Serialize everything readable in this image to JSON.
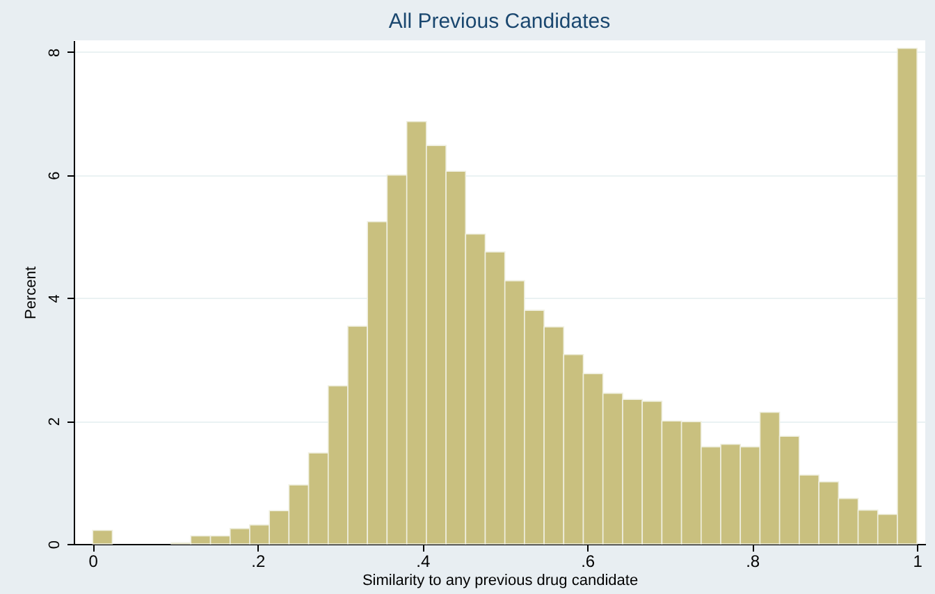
{
  "chart_data": {
    "type": "histogram",
    "title": "All Previous Candidates",
    "xlabel": "Similarity to any previous drug candidate",
    "ylabel": "Percent",
    "bins": [
      0,
      0.0238,
      0.0476,
      0.0714,
      0.0952,
      0.119,
      0.1429,
      0.1667,
      0.1905,
      0.2143,
      0.2381,
      0.2619,
      0.2857,
      0.3095,
      0.3333,
      0.3571,
      0.381,
      0.4048,
      0.4286,
      0.4524,
      0.4762,
      0.5,
      0.5238,
      0.5476,
      0.5714,
      0.5952,
      0.619,
      0.6429,
      0.6667,
      0.6905,
      0.7143,
      0.7381,
      0.7619,
      0.7857,
      0.8095,
      0.8333,
      0.8571,
      0.881,
      0.9048,
      0.9286,
      0.9524,
      0.9762,
      1
    ],
    "values": [
      0.22,
      0,
      0,
      0,
      0.02,
      0.13,
      0.13,
      0.25,
      0.31,
      0.54,
      0.96,
      1.48,
      2.57,
      3.54,
      5.24,
      6.0,
      6.87,
      6.48,
      6.06,
      5.04,
      4.75,
      4.28,
      3.8,
      3.53,
      3.08,
      2.77,
      2.45,
      2.35,
      2.32,
      2.0,
      1.99,
      1.58,
      1.62,
      1.58,
      2.14,
      1.75,
      1.12,
      1.01,
      0.74,
      0.55,
      0.48,
      8.06
    ],
    "color": "#c9c07f",
    "xlim": [
      -0.023,
      1.01
    ],
    "xticks": [
      0,
      {
        "value": 0.2,
        "label": ".2"
      },
      {
        "value": 0.4,
        "label": ".4"
      },
      {
        "value": 0.6,
        "label": ".6"
      },
      {
        "value": 0.8,
        "label": ".8"
      },
      1
    ],
    "ylim": [
      0,
      8.19
    ],
    "yticks": [
      0,
      2,
      4,
      6,
      8
    ],
    "grid": "y"
  }
}
